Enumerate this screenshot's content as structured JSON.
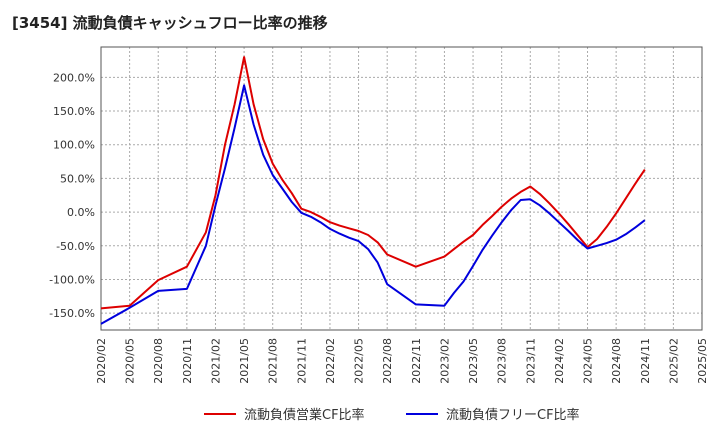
{
  "chart_data": {
    "type": "line",
    "title": "[3454]  流動負債キャッシュフロー比率の推移",
    "ylim": [
      -175,
      245
    ],
    "y_ticks": [
      -150,
      -100,
      -50,
      0,
      50,
      100,
      150,
      200
    ],
    "y_tick_labels": [
      "-150.0%",
      "-100.0%",
      "-50.0%",
      "0.0%",
      "50.0%",
      "100.0%",
      "150.0%",
      "200.0%"
    ],
    "x_tick_labels": [
      "2020/02",
      "2020/05",
      "2020/08",
      "2020/11",
      "2021/02",
      "2021/05",
      "2021/08",
      "2021/11",
      "2022/02",
      "2022/05",
      "2022/08",
      "2022/11",
      "2023/02",
      "2023/05",
      "2023/08",
      "2023/11",
      "2024/02",
      "2024/05",
      "2024/08",
      "2024/11",
      "2025/02",
      "2025/05"
    ],
    "x": [
      "2020/02",
      "2020/05",
      "2020/08",
      "2020/11",
      "2021/01",
      "2021/02",
      "2021/03",
      "2021/04",
      "2021/05",
      "2021/06",
      "2021/07",
      "2021/08",
      "2021/09",
      "2021/10",
      "2021/11",
      "2021/12",
      "2022/01",
      "2022/02",
      "2022/03",
      "2022/04",
      "2022/05",
      "2022/06",
      "2022/07",
      "2022/08",
      "2022/11",
      "2023/02",
      "2023/03",
      "2023/04",
      "2023/05",
      "2023/06",
      "2023/07",
      "2023/08",
      "2023/09",
      "2023/10",
      "2023/11",
      "2023/12",
      "2024/01",
      "2024/02",
      "2024/03",
      "2024/04",
      "2024/05",
      "2024/06",
      "2024/07",
      "2024/08",
      "2024/09",
      "2024/10",
      "2024/11"
    ],
    "series": [
      {
        "name": "流動負債営業CF比率",
        "color": "#dd0000",
        "values": [
          -143,
          -139,
          -101,
          -81,
          -30,
          25,
          100,
          160,
          230,
          160,
          108,
          72,
          48,
          28,
          5,
          0,
          -7,
          -15,
          -20,
          -24,
          -28,
          -34,
          -45,
          -63,
          -81,
          -66,
          -55,
          -44,
          -34,
          -19,
          -6,
          8,
          20,
          30,
          38,
          27,
          13,
          -2,
          -18,
          -35,
          -52,
          -40,
          -22,
          -2,
          20,
          42,
          63
        ]
      },
      {
        "name": "流動負債フリーCF比率",
        "color": "#0000dd",
        "values": [
          -166,
          -142,
          -117,
          -114,
          -50,
          10,
          65,
          125,
          188,
          130,
          85,
          55,
          35,
          15,
          -1,
          -7,
          -15,
          -25,
          -32,
          -38,
          -43,
          -55,
          -75,
          -107,
          -137,
          -139,
          -120,
          -103,
          -80,
          -56,
          -35,
          -15,
          3,
          18,
          19,
          10,
          -2,
          -15,
          -28,
          -42,
          -54,
          -50,
          -46,
          -41,
          -33,
          -23,
          -12
        ]
      }
    ],
    "legend_position": "bottom",
    "grid": true
  }
}
